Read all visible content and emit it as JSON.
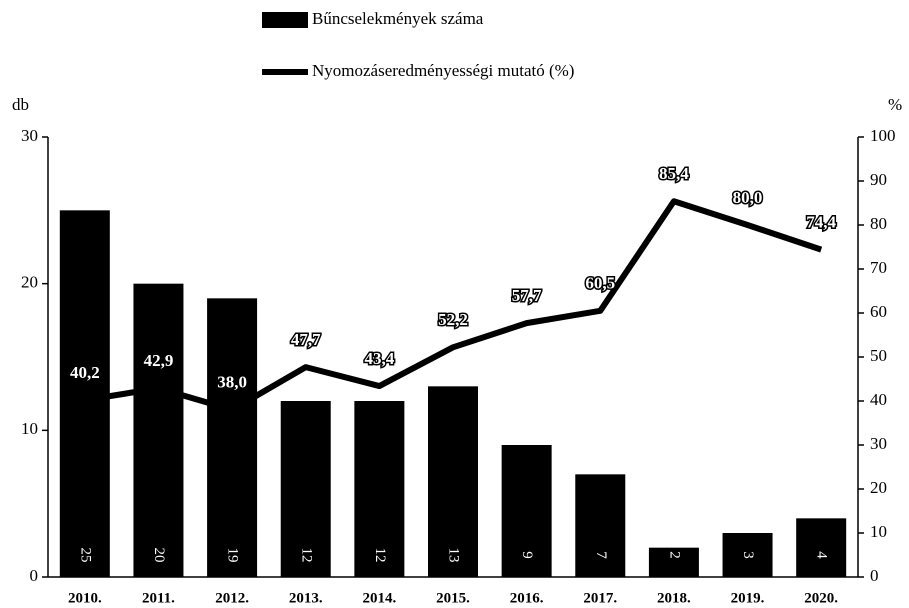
{
  "chart_data": {
    "type": "bar",
    "categories": [
      "2010.",
      "2011.",
      "2012.",
      "2013.",
      "2014.",
      "2015.",
      "2016.",
      "2017.",
      "2018.",
      "2019.",
      "2020."
    ],
    "series": [
      {
        "name": "Bűncselekmények száma",
        "type": "bar",
        "axis": "y",
        "color": "#000000",
        "values": [
          25,
          20,
          19,
          12,
          12,
          13,
          9,
          7,
          2,
          3,
          4
        ]
      },
      {
        "name": "Nyomozáseredményességi mutató (%)",
        "type": "line",
        "axis": "y2",
        "color": "#000000",
        "values": [
          40.2,
          42.9,
          38.0,
          47.7,
          43.4,
          52.2,
          57.7,
          60.5,
          85.4,
          80.0,
          74.4
        ],
        "value_labels": [
          "40,2",
          "42,9",
          "38,0",
          "47,7",
          "43,4",
          "52,2",
          "57,7",
          "60,5",
          "85,4",
          "80,0",
          "74,4"
        ]
      }
    ],
    "ylabel": "db",
    "y2label": "%",
    "ylim": [
      0,
      30
    ],
    "yticks": [
      0,
      10,
      20,
      30
    ],
    "y2lim": [
      0,
      100
    ],
    "y2ticks": [
      0,
      10,
      20,
      30,
      40,
      50,
      60,
      70,
      80,
      90,
      100
    ]
  }
}
